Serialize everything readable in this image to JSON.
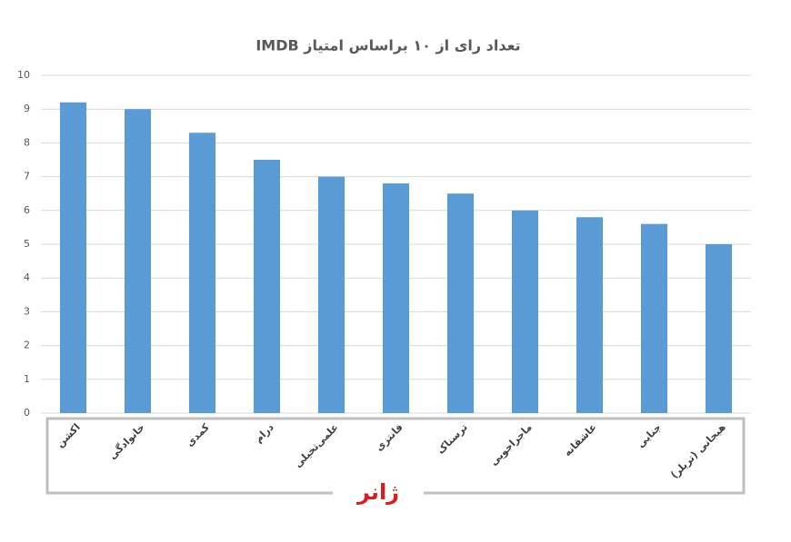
{
  "chart_data": {
    "type": "bar",
    "title": "تعداد رای از ۱۰ براساس امتیاز IMDB",
    "x_label": "ژانر",
    "categories": [
      "اکشن",
      "خانوادگی",
      "کمدی",
      "درام",
      "علمی‌تخیلی",
      "فانتزی",
      "ترسناک",
      "ماجراجویی",
      "عاشقانه",
      "جنایی",
      "هیجانی (تریلر)"
    ],
    "values": [
      9.2,
      9.0,
      8.3,
      7.5,
      7.0,
      6.8,
      6.5,
      6.0,
      5.8,
      5.6,
      5.0
    ],
    "color": "#5b9bd5",
    "ylim": [
      0,
      10
    ],
    "yticks": [
      0,
      1,
      2,
      3,
      4,
      5,
      6,
      7,
      8,
      9,
      10
    ],
    "grid": true
  }
}
